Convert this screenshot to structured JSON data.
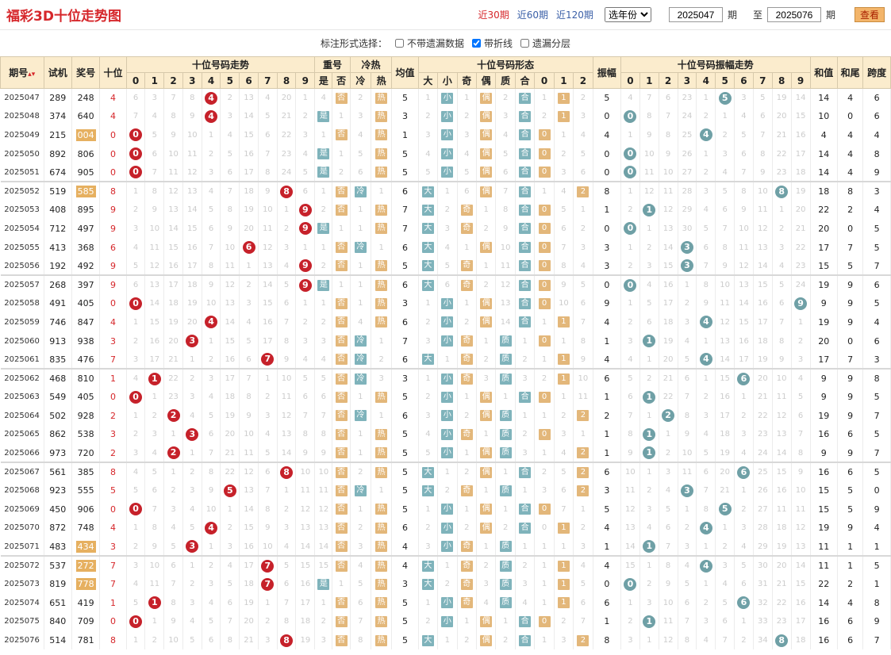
{
  "title": "福彩3D十位走势图",
  "nav": {
    "links": [
      "近30期",
      "近60期",
      "近120期"
    ],
    "active": 0,
    "year_select": "选年份",
    "from_value": "2025047",
    "qi1": "期",
    "to_label": "至",
    "to_value": "2025076",
    "qi2": "期",
    "query": "查看"
  },
  "options": {
    "label": "标注形式选择：",
    "items": [
      {
        "label": "不带遗漏数据",
        "checked": false
      },
      {
        "label": "带折线",
        "checked": true
      },
      {
        "label": "遗漏分层",
        "checked": false
      }
    ]
  },
  "header": {
    "qihao": "期号",
    "sort_arrow": "▴▾",
    "shiji": "试机",
    "jianghao": "奖号",
    "shiwei": "十位",
    "trend": "十位号码走势",
    "chonghao": "重号",
    "lengre": "冷热",
    "junzhi": "均值",
    "xingtai": "十位号码形态",
    "zhenfu": "振幅",
    "zhenfu_trend": "十位号码振幅走势",
    "hezhi": "和值",
    "hewei": "和尾",
    "kuadu": "跨度",
    "digits": [
      "0",
      "1",
      "2",
      "3",
      "4",
      "5",
      "6",
      "7",
      "8",
      "9"
    ],
    "chong_sub": [
      "是",
      "否"
    ],
    "lr_sub": [
      "冷",
      "热"
    ],
    "xt_sub": [
      "大",
      "小",
      "奇",
      "偶",
      "质",
      "合",
      "0",
      "1",
      "2"
    ]
  },
  "rows": [
    {
      "id": "2025047",
      "sj": "289",
      "jh": "248",
      "sw": "4",
      "hl": false
    },
    {
      "id": "2025048",
      "sj": "374",
      "jh": "640",
      "sw": "4",
      "hl": false
    },
    {
      "id": "2025049",
      "sj": "215",
      "jh": "004",
      "sw": "0",
      "hl": true
    },
    {
      "id": "2025050",
      "sj": "892",
      "jh": "806",
      "sw": "0",
      "hl": false
    },
    {
      "id": "2025051",
      "sj": "674",
      "jh": "905",
      "sw": "0",
      "hl": false
    },
    {
      "id": "2025052",
      "sj": "519",
      "jh": "585",
      "sw": "8",
      "hl": true
    },
    {
      "id": "2025053",
      "sj": "408",
      "jh": "895",
      "sw": "9",
      "hl": false
    },
    {
      "id": "2025054",
      "sj": "712",
      "jh": "497",
      "sw": "9",
      "hl": false
    },
    {
      "id": "2025055",
      "sj": "413",
      "jh": "368",
      "sw": "6",
      "hl": false
    },
    {
      "id": "2025056",
      "sj": "192",
      "jh": "492",
      "sw": "9",
      "hl": false
    },
    {
      "id": "2025057",
      "sj": "268",
      "jh": "397",
      "sw": "9",
      "hl": false
    },
    {
      "id": "2025058",
      "sj": "491",
      "jh": "405",
      "sw": "0",
      "hl": false
    },
    {
      "id": "2025059",
      "sj": "746",
      "jh": "847",
      "sw": "4",
      "hl": false
    },
    {
      "id": "2025060",
      "sj": "913",
      "jh": "938",
      "sw": "3",
      "hl": false
    },
    {
      "id": "2025061",
      "sj": "835",
      "jh": "476",
      "sw": "7",
      "hl": false
    },
    {
      "id": "2025062",
      "sj": "468",
      "jh": "810",
      "sw": "1",
      "hl": false
    },
    {
      "id": "2025063",
      "sj": "549",
      "jh": "405",
      "sw": "0",
      "hl": false
    },
    {
      "id": "2025064",
      "sj": "502",
      "jh": "928",
      "sw": "2",
      "hl": false
    },
    {
      "id": "2025065",
      "sj": "862",
      "jh": "538",
      "sw": "3",
      "hl": false
    },
    {
      "id": "2025066",
      "sj": "973",
      "jh": "720",
      "sw": "2",
      "hl": false
    },
    {
      "id": "2025067",
      "sj": "561",
      "jh": "385",
      "sw": "8",
      "hl": false
    },
    {
      "id": "2025068",
      "sj": "923",
      "jh": "555",
      "sw": "5",
      "hl": false
    },
    {
      "id": "2025069",
      "sj": "450",
      "jh": "906",
      "sw": "0",
      "hl": false
    },
    {
      "id": "2025070",
      "sj": "872",
      "jh": "748",
      "sw": "4",
      "hl": false
    },
    {
      "id": "2025071",
      "sj": "483",
      "jh": "434",
      "sw": "3",
      "hl": true
    },
    {
      "id": "2025072",
      "sj": "537",
      "jh": "272",
      "sw": "7",
      "hl": true
    },
    {
      "id": "2025073",
      "sj": "819",
      "jh": "778",
      "sw": "7",
      "hl": true
    },
    {
      "id": "2025074",
      "sj": "651",
      "jh": "419",
      "sw": "1",
      "hl": false
    },
    {
      "id": "2025075",
      "sj": "840",
      "jh": "709",
      "sw": "0",
      "hl": false
    },
    {
      "id": "2025076",
      "sj": "514",
      "jh": "781",
      "sw": "8",
      "hl": false
    }
  ],
  "trend_miss": [
    [
      "6",
      "3",
      "7",
      "8",
      "4",
      "2",
      "13",
      "4",
      "20",
      "1"
    ],
    [
      "7",
      "4",
      "8",
      "9",
      "4",
      "3",
      "14",
      "5",
      "21",
      "2"
    ],
    [
      "0",
      "5",
      "9",
      "10",
      "1",
      "4",
      "15",
      "6",
      "22",
      "3"
    ],
    [
      "0",
      "6",
      "10",
      "11",
      "2",
      "5",
      "16",
      "7",
      "23",
      "4"
    ],
    [
      "0",
      "7",
      "11",
      "12",
      "3",
      "6",
      "17",
      "8",
      "24",
      "5"
    ],
    [
      "1",
      "8",
      "12",
      "13",
      "4",
      "7",
      "18",
      "9",
      "8",
      "6"
    ],
    [
      "2",
      "9",
      "13",
      "14",
      "5",
      "8",
      "19",
      "10",
      "1",
      "9"
    ],
    [
      "3",
      "10",
      "14",
      "15",
      "6",
      "9",
      "20",
      "11",
      "2",
      "9"
    ],
    [
      "4",
      "11",
      "15",
      "16",
      "7",
      "10",
      "6",
      "12",
      "3",
      "1"
    ],
    [
      "5",
      "12",
      "16",
      "17",
      "8",
      "11",
      "1",
      "13",
      "4",
      "9"
    ],
    [
      "6",
      "13",
      "17",
      "18",
      "9",
      "12",
      "2",
      "14",
      "5",
      "9"
    ],
    [
      "0",
      "14",
      "18",
      "19",
      "10",
      "13",
      "3",
      "15",
      "6",
      "1"
    ],
    [
      "1",
      "15",
      "19",
      "20",
      "4",
      "14",
      "4",
      "16",
      "7",
      "2"
    ],
    [
      "2",
      "16",
      "20",
      "3",
      "1",
      "15",
      "5",
      "17",
      "8",
      "3"
    ],
    [
      "3",
      "17",
      "21",
      "1",
      "2",
      "16",
      "6",
      "7",
      "9",
      "4"
    ],
    [
      "4",
      "1",
      "22",
      "2",
      "3",
      "17",
      "7",
      "1",
      "10",
      "5"
    ],
    [
      "0",
      "1",
      "23",
      "3",
      "4",
      "18",
      "8",
      "2",
      "11",
      "6"
    ],
    [
      "1",
      "2",
      "2",
      "4",
      "5",
      "19",
      "9",
      "3",
      "12",
      "7"
    ],
    [
      "2",
      "3",
      "1",
      "3",
      "6",
      "20",
      "10",
      "4",
      "13",
      "8"
    ],
    [
      "3",
      "4",
      "2",
      "1",
      "7",
      "21",
      "11",
      "5",
      "14",
      "9"
    ],
    [
      "4",
      "5",
      "1",
      "2",
      "8",
      "22",
      "12",
      "6",
      "8",
      "10"
    ],
    [
      "5",
      "6",
      "2",
      "3",
      "9",
      "5",
      "13",
      "7",
      "1",
      "11"
    ],
    [
      "0",
      "7",
      "3",
      "4",
      "10",
      "1",
      "14",
      "8",
      "2",
      "12"
    ],
    [
      "1",
      "8",
      "4",
      "5",
      "4",
      "2",
      "15",
      "9",
      "3",
      "13"
    ],
    [
      "2",
      "9",
      "5",
      "3",
      "1",
      "3",
      "16",
      "10",
      "4",
      "14"
    ],
    [
      "3",
      "10",
      "6",
      "1",
      "2",
      "4",
      "17",
      "7",
      "5",
      "15"
    ],
    [
      "4",
      "11",
      "7",
      "2",
      "3",
      "5",
      "18",
      "7",
      "6",
      "16"
    ],
    [
      "5",
      "1",
      "8",
      "3",
      "4",
      "6",
      "19",
      "1",
      "7",
      "17"
    ],
    [
      "0",
      "1",
      "9",
      "4",
      "5",
      "7",
      "20",
      "2",
      "8",
      "18"
    ],
    [
      "1",
      "2",
      "10",
      "5",
      "6",
      "8",
      "21",
      "3",
      "8",
      "19"
    ]
  ],
  "chong": [
    [
      "4",
      "否"
    ],
    [
      "是",
      "1"
    ],
    [
      "1",
      "否"
    ],
    [
      "是",
      "1"
    ],
    [
      "是",
      "2"
    ],
    [
      "1",
      "否"
    ],
    [
      "2",
      "否"
    ],
    [
      "是",
      "1"
    ],
    [
      "1",
      "否"
    ],
    [
      "2",
      "否"
    ],
    [
      "是",
      "1"
    ],
    [
      "1",
      "否"
    ],
    [
      "2",
      "否"
    ],
    [
      "3",
      "否"
    ],
    [
      "4",
      "否"
    ],
    [
      "5",
      "否"
    ],
    [
      "6",
      "否"
    ],
    [
      "7",
      "否"
    ],
    [
      "8",
      "否"
    ],
    [
      "9",
      "否"
    ],
    [
      "10",
      "否"
    ],
    [
      "11",
      "否"
    ],
    [
      "12",
      "否"
    ],
    [
      "13",
      "否"
    ],
    [
      "14",
      "否"
    ],
    [
      "15",
      "否"
    ],
    [
      "是",
      "1"
    ],
    [
      "1",
      "否"
    ],
    [
      "2",
      "否"
    ],
    [
      "3",
      "否"
    ]
  ],
  "lengre": [
    [
      "2",
      "热"
    ],
    [
      "3",
      "热"
    ],
    [
      "4",
      "热"
    ],
    [
      "5",
      "热"
    ],
    [
      "6",
      "热"
    ],
    [
      "冷",
      "1"
    ],
    [
      "1",
      "热"
    ],
    [
      "1",
      "热"
    ],
    [
      "冷",
      "1"
    ],
    [
      "1",
      "热"
    ],
    [
      "1",
      "热"
    ],
    [
      "1",
      "热"
    ],
    [
      "4",
      "热"
    ],
    [
      "冷",
      "1"
    ],
    [
      "冷",
      "2"
    ],
    [
      "冷",
      "3"
    ],
    [
      "1",
      "热"
    ],
    [
      "冷",
      "1"
    ],
    [
      "1",
      "热"
    ],
    [
      "1",
      "热"
    ],
    [
      "2",
      "热"
    ],
    [
      "冷",
      "1"
    ],
    [
      "1",
      "热"
    ],
    [
      "2",
      "热"
    ],
    [
      "3",
      "热"
    ],
    [
      "4",
      "热"
    ],
    [
      "5",
      "热"
    ],
    [
      "6",
      "热"
    ],
    [
      "7",
      "热"
    ],
    [
      "8",
      "热"
    ]
  ],
  "junzhi": [
    "5",
    "3",
    "1",
    "5",
    "5",
    "6",
    "7",
    "7",
    "6",
    "5",
    "6",
    "3",
    "6",
    "7",
    "6",
    "3",
    "5",
    "6",
    "5",
    "5",
    "5",
    "5",
    "5",
    "6",
    "4",
    "4",
    "3",
    "5",
    "5",
    "5"
  ],
  "xingtai": [
    [
      "1",
      "小",
      "1",
      "偶",
      "2",
      "合",
      "1",
      "1",
      "2"
    ],
    [
      "2",
      "小",
      "2",
      "偶",
      "3",
      "合",
      "2",
      "1",
      "3"
    ],
    [
      "3",
      "小",
      "3",
      "偶",
      "4",
      "合",
      "0",
      "1",
      "4"
    ],
    [
      "4",
      "小",
      "4",
      "偶",
      "5",
      "合",
      "0",
      "2",
      "5"
    ],
    [
      "5",
      "小",
      "5",
      "偶",
      "6",
      "合",
      "0",
      "3",
      "6"
    ],
    [
      "大",
      "1",
      "6",
      "偶",
      "7",
      "合",
      "1",
      "4",
      "2"
    ],
    [
      "大",
      "2",
      "奇",
      "1",
      "8",
      "合",
      "0",
      "5",
      "1"
    ],
    [
      "大",
      "3",
      "奇",
      "2",
      "9",
      "合",
      "0",
      "6",
      "2"
    ],
    [
      "大",
      "4",
      "1",
      "偶",
      "10",
      "合",
      "0",
      "7",
      "3"
    ],
    [
      "大",
      "5",
      "奇",
      "1",
      "11",
      "合",
      "0",
      "8",
      "4"
    ],
    [
      "大",
      "6",
      "奇",
      "2",
      "12",
      "合",
      "0",
      "9",
      "5"
    ],
    [
      "1",
      "小",
      "1",
      "偶",
      "13",
      "合",
      "0",
      "10",
      "6"
    ],
    [
      "2",
      "小",
      "2",
      "偶",
      "14",
      "合",
      "1",
      "1",
      "7"
    ],
    [
      "3",
      "小",
      "奇",
      "1",
      "质",
      "1",
      "0",
      "1",
      "8"
    ],
    [
      "大",
      "1",
      "奇",
      "2",
      "质",
      "2",
      "1",
      "1",
      "9"
    ],
    [
      "1",
      "小",
      "奇",
      "3",
      "质",
      "3",
      "2",
      "1",
      "10"
    ],
    [
      "2",
      "小",
      "1",
      "偶",
      "1",
      "合",
      "0",
      "1",
      "11"
    ],
    [
      "3",
      "小",
      "2",
      "偶",
      "质",
      "1",
      "1",
      "2",
      "2"
    ],
    [
      "4",
      "小",
      "奇",
      "1",
      "质",
      "2",
      "0",
      "3",
      "1"
    ],
    [
      "5",
      "小",
      "1",
      "偶",
      "质",
      "3",
      "1",
      "4",
      "2"
    ],
    [
      "大",
      "1",
      "2",
      "偶",
      "1",
      "合",
      "2",
      "5",
      "2"
    ],
    [
      "大",
      "2",
      "奇",
      "1",
      "质",
      "1",
      "3",
      "6",
      "2"
    ],
    [
      "1",
      "小",
      "1",
      "偶",
      "1",
      "合",
      "0",
      "7",
      "1"
    ],
    [
      "2",
      "小",
      "2",
      "偶",
      "2",
      "合",
      "0",
      "1",
      "2"
    ],
    [
      "3",
      "小",
      "奇",
      "1",
      "质",
      "1",
      "1",
      "1",
      "3"
    ],
    [
      "大",
      "1",
      "奇",
      "2",
      "质",
      "2",
      "1",
      "1",
      "4"
    ],
    [
      "大",
      "2",
      "奇",
      "3",
      "质",
      "3",
      "1",
      "1",
      "5"
    ],
    [
      "1",
      "小",
      "奇",
      "4",
      "质",
      "4",
      "1",
      "1",
      "6"
    ],
    [
      "2",
      "小",
      "1",
      "偶",
      "1",
      "合",
      "0",
      "2",
      "7"
    ],
    [
      "大",
      "1",
      "2",
      "偶",
      "2",
      "合",
      "1",
      "3",
      "2"
    ]
  ],
  "zhenfu": [
    "5",
    "0",
    "4",
    "0",
    "0",
    "8",
    "1",
    "0",
    "3",
    "3",
    "0",
    "9",
    "4",
    "1",
    "4",
    "6",
    "1",
    "2",
    "1",
    "1",
    "6",
    "3",
    "5",
    "4",
    "1",
    "4",
    "0",
    "6",
    "1",
    "8"
  ],
  "zhenfu_miss": [
    [
      "4",
      "7",
      "6",
      "23",
      "1",
      "5",
      "3",
      "5",
      "19",
      "14"
    ],
    [
      "0",
      "8",
      "7",
      "24",
      "2",
      "1",
      "4",
      "6",
      "20",
      "15"
    ],
    [
      "1",
      "9",
      "8",
      "25",
      "4",
      "2",
      "5",
      "7",
      "21",
      "16"
    ],
    [
      "0",
      "10",
      "9",
      "26",
      "1",
      "3",
      "6",
      "8",
      "22",
      "17"
    ],
    [
      "0",
      "11",
      "10",
      "27",
      "2",
      "4",
      "7",
      "9",
      "23",
      "18"
    ],
    [
      "1",
      "12",
      "11",
      "28",
      "3",
      "5",
      "8",
      "10",
      "8",
      "19"
    ],
    [
      "2",
      "1",
      "12",
      "29",
      "4",
      "6",
      "9",
      "11",
      "1",
      "20"
    ],
    [
      "0",
      "1",
      "13",
      "30",
      "5",
      "7",
      "10",
      "12",
      "2",
      "21"
    ],
    [
      "1",
      "2",
      "14",
      "3",
      "6",
      "8",
      "11",
      "13",
      "3",
      "22"
    ],
    [
      "2",
      "3",
      "15",
      "3",
      "7",
      "9",
      "12",
      "14",
      "4",
      "23"
    ],
    [
      "0",
      "4",
      "16",
      "1",
      "8",
      "10",
      "13",
      "15",
      "5",
      "24"
    ],
    [
      "1",
      "5",
      "17",
      "2",
      "9",
      "11",
      "14",
      "16",
      "6",
      "9"
    ],
    [
      "2",
      "6",
      "18",
      "3",
      "4",
      "12",
      "15",
      "17",
      "7",
      "1"
    ],
    [
      "3",
      "1",
      "19",
      "4",
      "1",
      "13",
      "16",
      "18",
      "8",
      "2"
    ],
    [
      "4",
      "1",
      "20",
      "5",
      "4",
      "14",
      "17",
      "19",
      "9",
      "3"
    ],
    [
      "5",
      "2",
      "21",
      "6",
      "1",
      "15",
      "6",
      "20",
      "10",
      "4"
    ],
    [
      "6",
      "1",
      "22",
      "7",
      "2",
      "16",
      "1",
      "21",
      "11",
      "5"
    ],
    [
      "7",
      "1",
      "2",
      "8",
      "3",
      "17",
      "2",
      "22",
      "12",
      "6"
    ],
    [
      "8",
      "1",
      "1",
      "9",
      "4",
      "18",
      "3",
      "23",
      "13",
      "7"
    ],
    [
      "9",
      "1",
      "2",
      "10",
      "5",
      "19",
      "4",
      "24",
      "14",
      "8"
    ],
    [
      "10",
      "1",
      "3",
      "11",
      "6",
      "20",
      "6",
      "25",
      "15",
      "9"
    ],
    [
      "11",
      "2",
      "4",
      "3",
      "7",
      "21",
      "1",
      "26",
      "16",
      "10"
    ],
    [
      "12",
      "3",
      "5",
      "1",
      "8",
      "5",
      "2",
      "27",
      "11",
      "11"
    ],
    [
      "13",
      "4",
      "6",
      "2",
      "4",
      "1",
      "3",
      "28",
      "18",
      "12"
    ],
    [
      "14",
      "1",
      "7",
      "3",
      "1",
      "2",
      "4",
      "29",
      "19",
      "13"
    ],
    [
      "15",
      "1",
      "8",
      "4",
      "4",
      "3",
      "5",
      "30",
      "20",
      "14"
    ],
    [
      "0",
      "2",
      "9",
      "5",
      "1",
      "4",
      "6",
      "31",
      "21",
      "15"
    ],
    [
      "1",
      "3",
      "10",
      "6",
      "2",
      "5",
      "6",
      "32",
      "22",
      "16"
    ],
    [
      "2",
      "1",
      "11",
      "7",
      "3",
      "6",
      "1",
      "33",
      "23",
      "17"
    ],
    [
      "3",
      "1",
      "12",
      "8",
      "4",
      "7",
      "2",
      "34",
      "8",
      "18"
    ]
  ],
  "hezhi": [
    "14",
    "10",
    "4",
    "14",
    "14",
    "18",
    "22",
    "20",
    "17",
    "15",
    "19",
    "9",
    "19",
    "20",
    "17",
    "9",
    "9",
    "19",
    "16",
    "9",
    "16",
    "15",
    "15",
    "19",
    "11",
    "11",
    "22",
    "14",
    "16",
    "16"
  ],
  "hewei": [
    "4",
    "0",
    "4",
    "4",
    "4",
    "8",
    "2",
    "0",
    "7",
    "5",
    "9",
    "9",
    "9",
    "0",
    "7",
    "9",
    "9",
    "9",
    "6",
    "9",
    "6",
    "5",
    "5",
    "9",
    "1",
    "1",
    "2",
    "4",
    "6",
    "6"
  ],
  "kuadu": [
    "6",
    "6",
    "4",
    "8",
    "9",
    "3",
    "4",
    "5",
    "5",
    "7",
    "6",
    "5",
    "4",
    "6",
    "3",
    "8",
    "5",
    "7",
    "5",
    "7",
    "5",
    "0",
    "9",
    "4",
    "1",
    "5",
    "1",
    "8",
    "9",
    "7"
  ],
  "zhenfu_ball": [
    5,
    0,
    4,
    0,
    0,
    8,
    1,
    0,
    3,
    3,
    0,
    9,
    4,
    1,
    4,
    6,
    1,
    2,
    1,
    1,
    6,
    3,
    5,
    4,
    1,
    4,
    0,
    6,
    1,
    8
  ],
  "colors": {
    "red": "#c6212a",
    "teal": "#6fa0a6",
    "tag_orange": "#e3b77a",
    "tag_teal": "#7fb3bb",
    "header_bg": "#fbeccd"
  }
}
